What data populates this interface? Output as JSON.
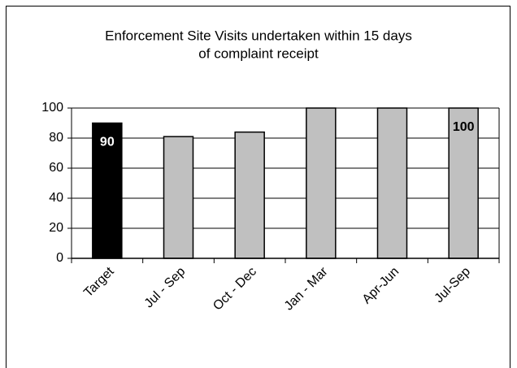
{
  "chart_data": {
    "type": "bar",
    "title": [
      "Enforcement Site Visits undertaken within 15 days",
      "of complaint receipt"
    ],
    "categories": [
      "Target",
      "Jul - Sep",
      "Oct - Dec",
      "Jan - Mar",
      "Apr-Jun",
      "Jul-Sep"
    ],
    "values": [
      90,
      81,
      84,
      100,
      100,
      100
    ],
    "value_labels": [
      "90",
      null,
      null,
      null,
      null,
      "100"
    ],
    "colors": [
      "#000000",
      "#c0c0c0",
      "#c0c0c0",
      "#c0c0c0",
      "#c0c0c0",
      "#c0c0c0"
    ],
    "ylim": [
      0,
      100
    ],
    "yticks": [
      0,
      20,
      40,
      60,
      80,
      100
    ],
    "grid": true
  }
}
